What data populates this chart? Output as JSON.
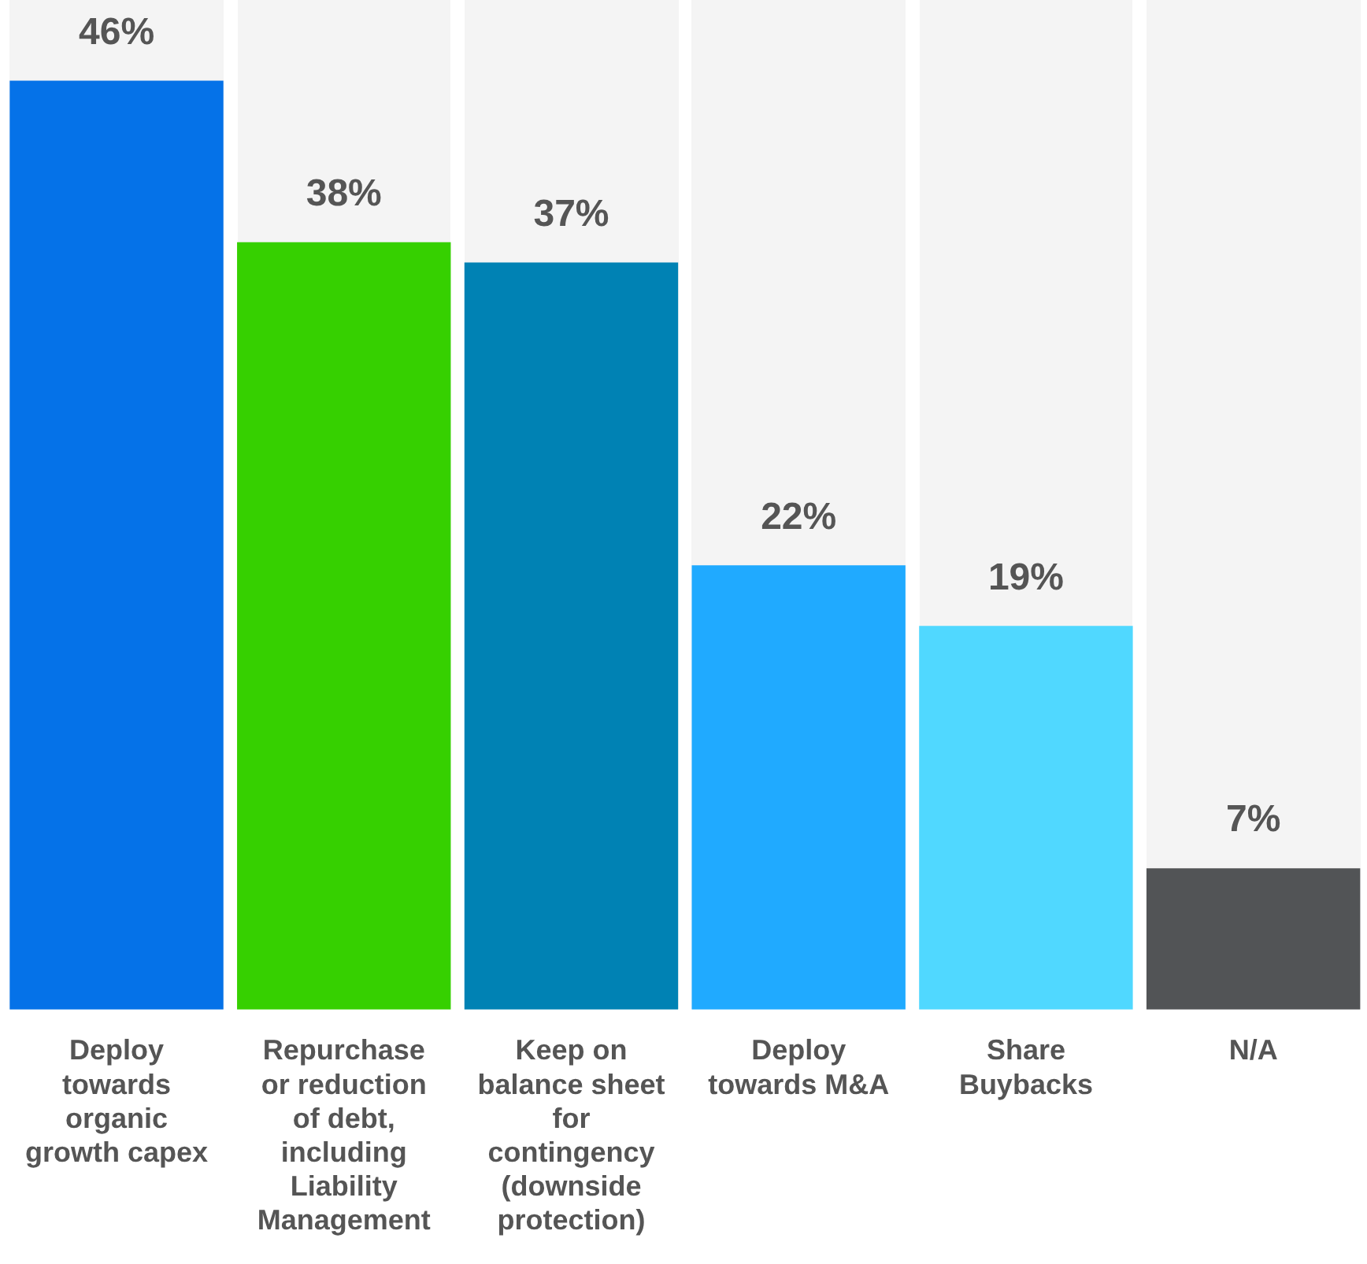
{
  "chart_data": {
    "type": "bar",
    "categories": [
      "Deploy towards organic growth capex",
      "Repurchase or reduction of debt, including Liability Management",
      "Keep on balance sheet for contingency (downside protection)",
      "Deploy towards M&A",
      "Share Buybacks",
      "N/A"
    ],
    "values": [
      46,
      38,
      37,
      22,
      19,
      7
    ],
    "colors": [
      "#0572e8",
      "#36d000",
      "#0082b4",
      "#20aaff",
      "#50d8ff",
      "#525456"
    ],
    "value_labels": [
      "46%",
      "38%",
      "37%",
      "22%",
      "19%",
      "7%"
    ]
  }
}
